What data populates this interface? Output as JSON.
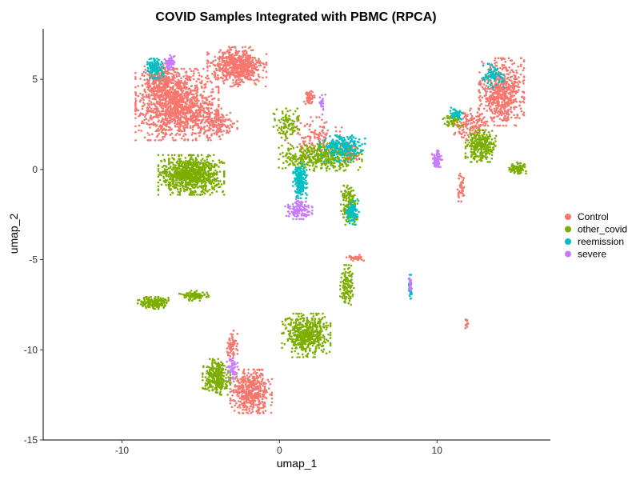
{
  "chart_data": {
    "type": "scatter",
    "title": "COVID Samples Integrated with PBMC (RPCA)",
    "xlabel": "umap_1",
    "ylabel": "umap_2",
    "xlim": [
      -15,
      17.2
    ],
    "ylim": [
      -15,
      7.8
    ],
    "x_ticks": [
      {
        "value": -10,
        "label": "-10"
      },
      {
        "value": 0,
        "label": "0"
      },
      {
        "value": 10,
        "label": "10"
      }
    ],
    "y_ticks": [
      {
        "value": 5,
        "label": "5"
      },
      {
        "value": 0,
        "label": "0"
      },
      {
        "value": -5,
        "label": "-5"
      },
      {
        "value": -10,
        "label": "-10"
      },
      {
        "value": -15,
        "label": "-15"
      }
    ],
    "grid": false,
    "legend_position": "right",
    "series": [
      {
        "name": "Control",
        "color": "#F8766D",
        "clusters": [
          {
            "cx": -6.5,
            "cy": 3.6,
            "rx": 2.4,
            "ry": 1.8,
            "n": 1300
          },
          {
            "cx": -7.6,
            "cy": 5.0,
            "rx": 1.0,
            "ry": 0.8,
            "n": 250
          },
          {
            "cx": -2.7,
            "cy": 5.7,
            "rx": 1.7,
            "ry": 1.0,
            "n": 600
          },
          {
            "cx": -4.0,
            "cy": 2.5,
            "rx": 1.2,
            "ry": 0.8,
            "n": 180
          },
          {
            "cx": 14.1,
            "cy": 4.3,
            "rx": 1.3,
            "ry": 1.7,
            "n": 650
          },
          {
            "cx": 12.0,
            "cy": 2.5,
            "rx": 1.0,
            "ry": 0.8,
            "n": 150
          },
          {
            "cx": 11.5,
            "cy": -1.0,
            "rx": 0.25,
            "ry": 0.7,
            "n": 40
          },
          {
            "cx": 11.9,
            "cy": -8.5,
            "rx": 0.1,
            "ry": 0.3,
            "n": 12
          },
          {
            "cx": -1.8,
            "cy": -12.3,
            "rx": 1.2,
            "ry": 1.1,
            "n": 500
          },
          {
            "cx": -3.0,
            "cy": -9.7,
            "rx": 0.3,
            "ry": 0.7,
            "n": 60
          },
          {
            "cx": 1.9,
            "cy": 4.0,
            "rx": 0.3,
            "ry": 0.4,
            "n": 50
          },
          {
            "cx": 4.5,
            "cy": 1.0,
            "rx": 0.6,
            "ry": 0.5,
            "n": 80
          },
          {
            "cx": 2.2,
            "cy": 1.8,
            "rx": 1.6,
            "ry": 1.0,
            "n": 120
          },
          {
            "cx": 4.8,
            "cy": -4.9,
            "rx": 0.5,
            "ry": 0.15,
            "n": 30
          }
        ]
      },
      {
        "name": "other_covid",
        "color": "#7CAE00",
        "clusters": [
          {
            "cx": -5.6,
            "cy": -0.3,
            "rx": 1.9,
            "ry": 1.0,
            "n": 900
          },
          {
            "cx": 2.6,
            "cy": 0.7,
            "rx": 2.4,
            "ry": 0.7,
            "n": 450
          },
          {
            "cx": 1.7,
            "cy": -9.2,
            "rx": 1.4,
            "ry": 1.1,
            "n": 500
          },
          {
            "cx": -4.0,
            "cy": -11.5,
            "rx": 0.8,
            "ry": 0.9,
            "n": 280
          },
          {
            "cx": -8.0,
            "cy": -7.4,
            "rx": 0.9,
            "ry": 0.3,
            "n": 180
          },
          {
            "cx": -5.5,
            "cy": -7.0,
            "rx": 0.9,
            "ry": 0.25,
            "n": 90
          },
          {
            "cx": 12.8,
            "cy": 1.3,
            "rx": 0.9,
            "ry": 0.8,
            "n": 280
          },
          {
            "cx": 15.1,
            "cy": 0.1,
            "rx": 0.5,
            "ry": 0.3,
            "n": 90
          },
          {
            "cx": 11.0,
            "cy": 2.8,
            "rx": 0.6,
            "ry": 0.4,
            "n": 70
          },
          {
            "cx": 4.4,
            "cy": -2.0,
            "rx": 0.5,
            "ry": 1.0,
            "n": 150
          },
          {
            "cx": 4.3,
            "cy": -6.4,
            "rx": 0.4,
            "ry": 1.0,
            "n": 120
          },
          {
            "cx": 0.5,
            "cy": 2.5,
            "rx": 0.8,
            "ry": 0.8,
            "n": 100
          }
        ]
      },
      {
        "name": "reemission",
        "color": "#00BFC4",
        "clusters": [
          {
            "cx": -7.9,
            "cy": 5.6,
            "rx": 0.5,
            "ry": 0.5,
            "n": 120
          },
          {
            "cx": 1.3,
            "cy": -0.6,
            "rx": 0.4,
            "ry": 0.9,
            "n": 200
          },
          {
            "cx": 4.0,
            "cy": 1.2,
            "rx": 1.3,
            "ry": 0.7,
            "n": 220
          },
          {
            "cx": 4.6,
            "cy": -2.4,
            "rx": 0.4,
            "ry": 0.6,
            "n": 90
          },
          {
            "cx": 13.6,
            "cy": 5.2,
            "rx": 0.6,
            "ry": 0.6,
            "n": 80
          },
          {
            "cx": 8.3,
            "cy": -6.5,
            "rx": 0.1,
            "ry": 0.6,
            "n": 40
          },
          {
            "cx": 11.2,
            "cy": 3.1,
            "rx": 0.4,
            "ry": 0.3,
            "n": 40
          }
        ]
      },
      {
        "name": "severe",
        "color": "#C77CFF",
        "clusters": [
          {
            "cx": -7.0,
            "cy": 5.9,
            "rx": 0.3,
            "ry": 0.4,
            "n": 60
          },
          {
            "cx": 1.2,
            "cy": -2.2,
            "rx": 0.8,
            "ry": 0.5,
            "n": 140
          },
          {
            "cx": 10.0,
            "cy": 0.6,
            "rx": 0.3,
            "ry": 0.5,
            "n": 70
          },
          {
            "cx": -3.0,
            "cy": -11.0,
            "rx": 0.3,
            "ry": 0.6,
            "n": 50
          },
          {
            "cx": 2.7,
            "cy": 3.6,
            "rx": 0.2,
            "ry": 0.5,
            "n": 25
          },
          {
            "cx": 8.3,
            "cy": -6.4,
            "rx": 0.1,
            "ry": 0.4,
            "n": 20
          }
        ]
      }
    ]
  }
}
